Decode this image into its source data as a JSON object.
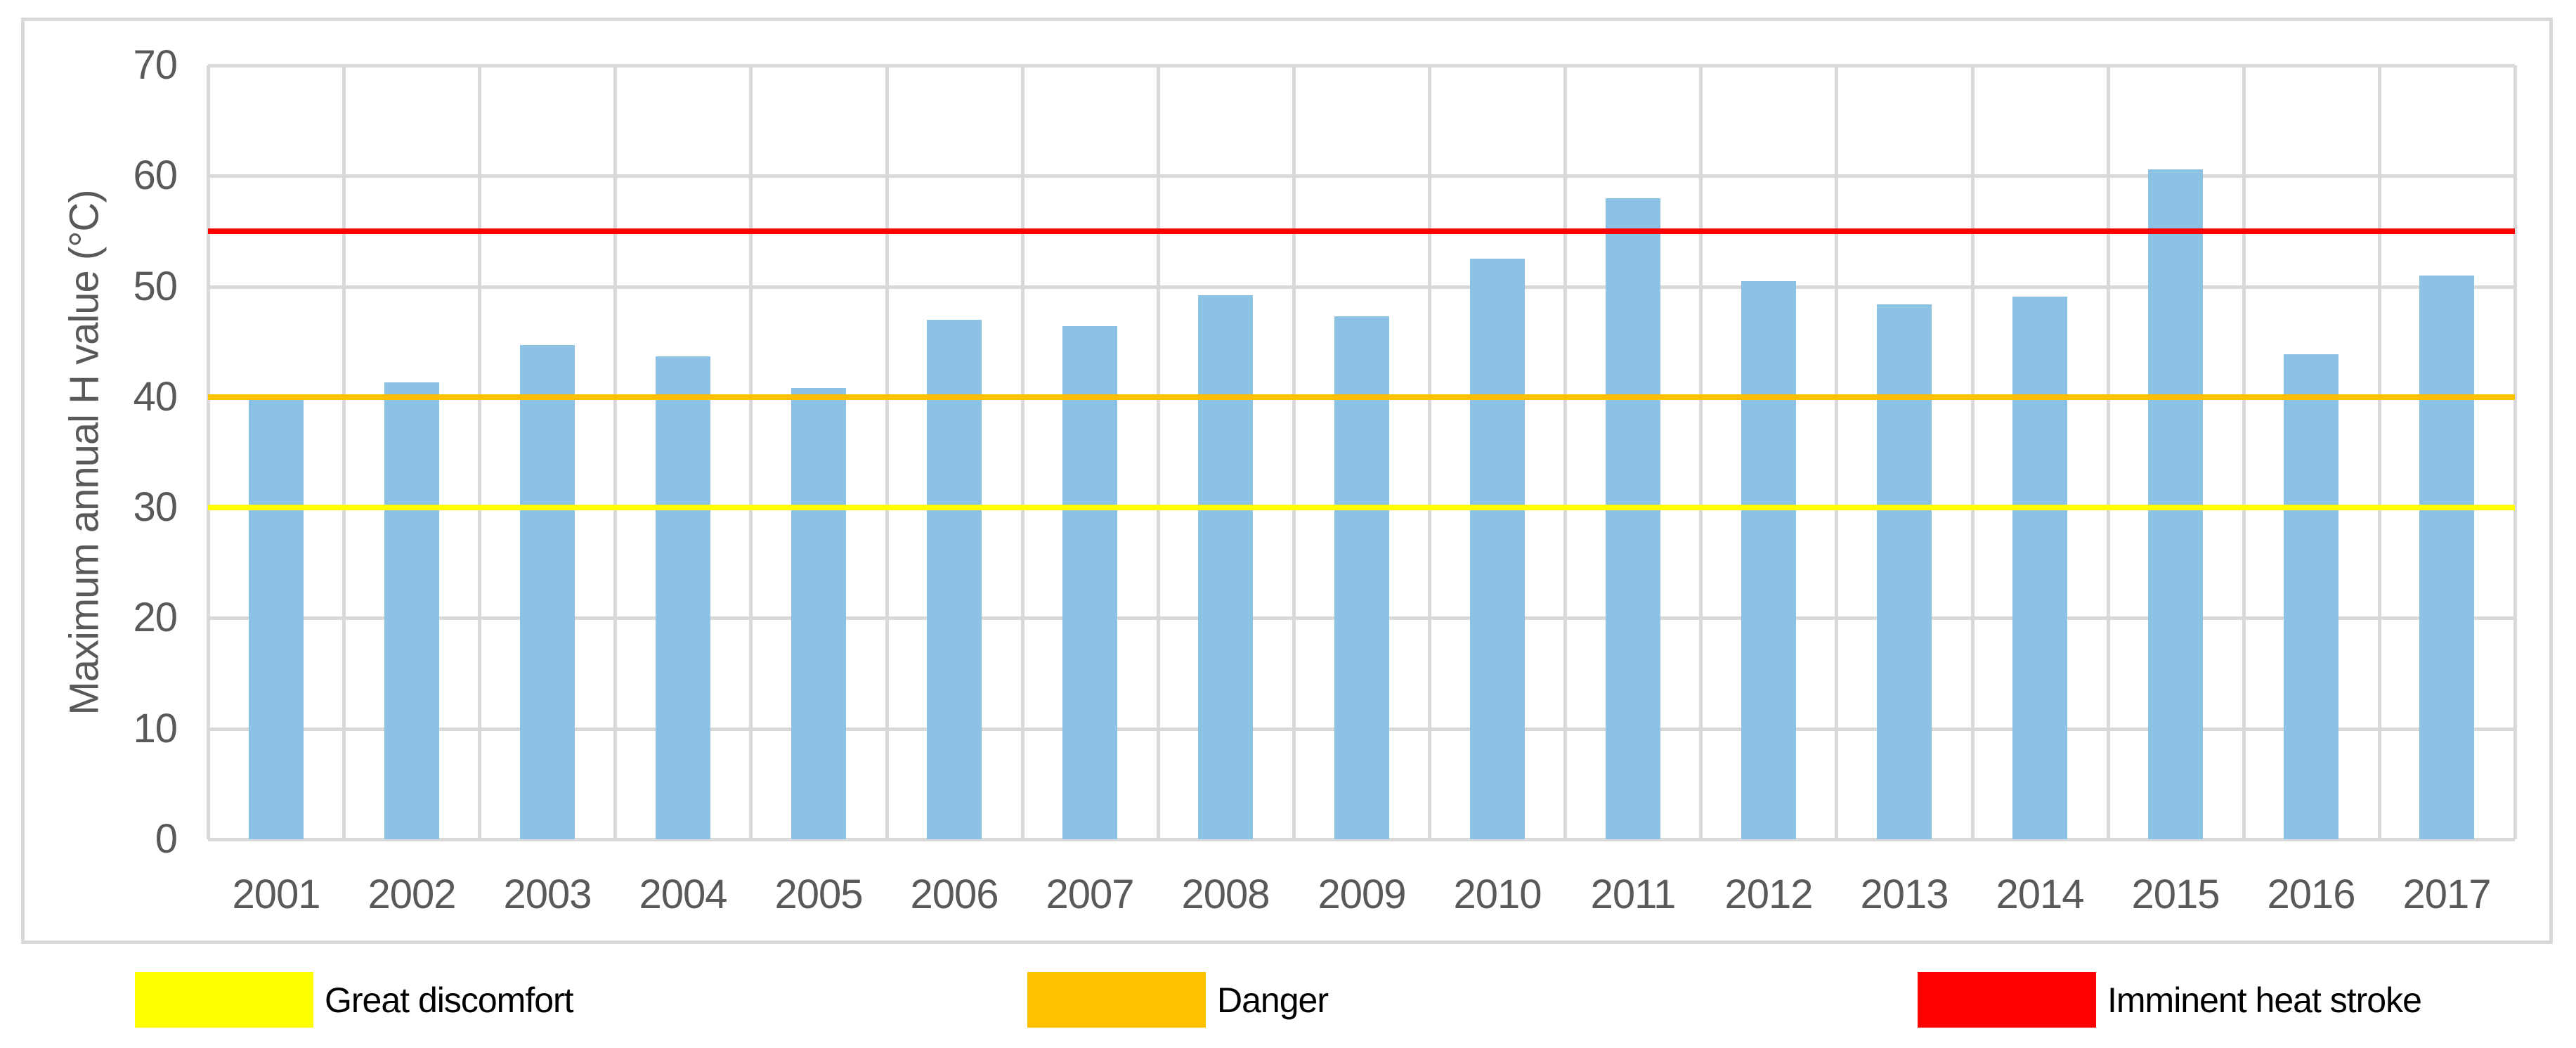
{
  "chart_data": {
    "type": "bar",
    "title": "",
    "xlabel": "",
    "ylabel": "Maximum annual H value (°C)",
    "ylim": [
      0,
      70
    ],
    "yticks": [
      0,
      10,
      20,
      30,
      40,
      50,
      60,
      70
    ],
    "grid": true,
    "legend_position": "bottom",
    "categories": [
      "2001",
      "2002",
      "2003",
      "2004",
      "2005",
      "2006",
      "2007",
      "2008",
      "2009",
      "2010",
      "2011",
      "2012",
      "2013",
      "2014",
      "2015",
      "2016",
      "2017"
    ],
    "series": [
      {
        "name": "Maximum annual H value",
        "values": [
          40.0,
          41.3,
          44.7,
          43.7,
          40.8,
          47.0,
          46.4,
          49.2,
          47.3,
          52.5,
          58.0,
          50.5,
          48.4,
          49.1,
          60.6,
          43.9,
          51.0
        ]
      }
    ],
    "thresholds": [
      {
        "label": "Great discomfort",
        "value": 30,
        "color": "#FFFF00"
      },
      {
        "label": "Danger",
        "value": 40,
        "color": "#FFC000"
      },
      {
        "label": "Imminent heat stroke",
        "value": 55,
        "color": "#FF0000"
      }
    ]
  },
  "colors": {
    "bar": "#8CC3E5",
    "gridline": "#D9D9D9",
    "frame_border": "#D9D9D9",
    "axis_text": "#595959",
    "legend_text": "#000000",
    "background": "#FFFFFF"
  }
}
